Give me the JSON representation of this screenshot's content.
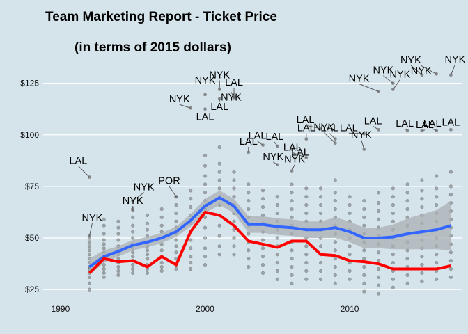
{
  "chart_data": {
    "type": "scatter",
    "title": "Team Marketing Report - Ticket Price",
    "subtitle": "(in terms of 2015 dollars)",
    "xlabel": "",
    "ylabel": "",
    "xlim": [
      1988.8,
      2017.8
    ],
    "ylim": [
      21,
      135
    ],
    "x_ticks": [
      1990,
      2000,
      2010
    ],
    "x_tick_labels": [
      "1990",
      "2000",
      "2010"
    ],
    "y_ticks": [
      25,
      50,
      75,
      100,
      125
    ],
    "y_tick_labels": [
      "$25",
      "$50",
      "$75",
      "$100",
      "$125"
    ],
    "grid": true,
    "legend": "none",
    "colors": {
      "background": "#d5e4eb",
      "grid": "#ffffff",
      "points": "#555555",
      "smooth": "#3366ff",
      "band": "#a9b0b4",
      "median": "#ff0000"
    },
    "points": [
      {
        "x": 1992,
        "y": [
          25,
          28,
          31,
          33,
          35,
          36,
          38,
          40,
          42,
          44,
          46,
          48,
          50
        ]
      },
      {
        "x": 1993,
        "y": [
          31,
          33,
          35,
          37,
          39,
          41,
          43,
          45,
          47,
          49,
          52,
          56,
          59
        ]
      },
      {
        "x": 1994,
        "y": [
          32,
          34,
          36,
          38,
          40,
          42,
          44,
          46,
          49,
          52,
          55,
          58
        ]
      },
      {
        "x": 1995,
        "y": [
          33,
          35,
          37,
          39,
          41,
          43,
          45,
          47,
          50,
          53,
          56,
          60,
          64
        ]
      },
      {
        "x": 1996,
        "y": [
          33,
          35,
          37,
          40,
          42,
          44,
          46,
          48,
          51,
          54,
          57,
          61
        ]
      },
      {
        "x": 1997,
        "y": [
          34,
          36,
          38,
          41,
          44,
          47,
          50,
          53,
          56,
          60,
          64
        ]
      },
      {
        "x": 1998,
        "y": [
          35,
          37,
          40,
          43,
          46,
          49,
          52,
          55,
          58,
          62,
          66,
          70
        ]
      },
      {
        "x": 1999,
        "y": [
          35,
          38,
          41,
          45,
          49,
          53,
          57,
          61,
          65,
          69,
          73
        ]
      },
      {
        "x": 2000,
        "y": [
          37,
          41,
          45,
          50,
          55,
          60,
          64,
          68,
          72,
          76,
          80,
          85,
          90
        ]
      },
      {
        "x": 2001,
        "y": [
          42,
          46,
          51,
          56,
          61,
          66,
          70,
          74,
          78,
          82,
          86,
          94
        ]
      },
      {
        "x": 2002,
        "y": [
          42,
          46,
          50,
          54,
          58,
          62,
          66,
          70,
          74,
          78,
          82
        ]
      },
      {
        "x": 2003,
        "y": [
          36,
          40,
          44,
          48,
          52,
          56,
          60,
          64,
          68,
          72,
          76
        ]
      },
      {
        "x": 2004,
        "y": [
          33,
          37,
          41,
          45,
          49,
          53,
          57,
          61,
          65,
          69,
          73
        ]
      },
      {
        "x": 2005,
        "y": [
          30,
          34,
          38,
          42,
          46,
          50,
          54,
          58,
          62,
          66,
          70
        ]
      },
      {
        "x": 2006,
        "y": [
          28,
          32,
          36,
          40,
          44,
          48,
          52,
          56,
          60,
          64,
          68,
          72,
          76
        ]
      },
      {
        "x": 2007,
        "y": [
          30,
          34,
          38,
          42,
          46,
          50,
          54,
          58,
          62,
          66,
          70,
          74
        ]
      },
      {
        "x": 2008,
        "y": [
          30,
          34,
          38,
          42,
          46,
          50,
          54,
          58,
          62,
          66,
          70,
          74
        ]
      },
      {
        "x": 2009,
        "y": [
          28,
          32,
          36,
          40,
          44,
          48,
          52,
          56,
          60,
          64,
          68,
          72,
          78
        ]
      },
      {
        "x": 2010,
        "y": [
          30,
          34,
          38,
          42,
          46,
          50,
          54,
          58,
          62,
          66,
          70
        ]
      },
      {
        "x": 2011,
        "y": [
          24,
          28,
          32,
          36,
          40,
          44,
          48,
          52,
          56,
          60,
          64,
          68
        ]
      },
      {
        "x": 2012,
        "y": [
          23,
          27,
          31,
          35,
          39,
          43,
          47,
          51,
          55,
          59,
          63,
          67,
          72
        ]
      },
      {
        "x": 2013,
        "y": [
          26,
          30,
          34,
          38,
          42,
          46,
          50,
          54,
          58,
          62,
          66,
          70,
          74
        ]
      },
      {
        "x": 2014,
        "y": [
          28,
          32,
          36,
          40,
          44,
          48,
          52,
          56,
          60,
          64,
          68,
          72,
          76
        ]
      },
      {
        "x": 2015,
        "y": [
          29,
          33,
          37,
          41,
          45,
          49,
          53,
          57,
          61,
          65,
          69,
          73,
          78
        ]
      },
      {
        "x": 2016,
        "y": [
          30,
          34,
          38,
          42,
          46,
          50,
          54,
          58,
          62,
          66,
          70,
          74,
          80
        ]
      },
      {
        "x": 2017,
        "y": [
          31,
          35,
          39,
          43,
          47,
          51,
          55,
          59,
          63,
          67,
          71,
          75,
          82
        ]
      }
    ],
    "labeled_points": [
      {
        "label": "LAL",
        "x": 1992,
        "y": 79.5
      },
      {
        "label": "NYK",
        "x": 1992,
        "y": 51
      },
      {
        "label": "NYK",
        "x": 1995,
        "y": 68
      },
      {
        "label": "NYK",
        "x": 1995,
        "y": 63.5
      },
      {
        "label": "POR",
        "x": 1998,
        "y": 70
      },
      {
        "label": "NYK",
        "x": 2000,
        "y": 119.5
      },
      {
        "label": "NYK",
        "x": 1999,
        "y": 113
      },
      {
        "label": "NYK",
        "x": 2001,
        "y": 122
      },
      {
        "label": "LAL",
        "x": 2000,
        "y": 112.5
      },
      {
        "label": "LAL",
        "x": 2001,
        "y": 117.5
      },
      {
        "label": "NYK",
        "x": 2002,
        "y": 118
      },
      {
        "label": "LAL",
        "x": 2002,
        "y": 118.5
      },
      {
        "label": "LAL",
        "x": 2003,
        "y": 91.5
      },
      {
        "label": "LAL",
        "x": 2004,
        "y": 95
      },
      {
        "label": "LAL",
        "x": 2005,
        "y": 94.5
      },
      {
        "label": "NYK",
        "x": 2005,
        "y": 85.5
      },
      {
        "label": "LAL",
        "x": 2006,
        "y": 93
      },
      {
        "label": "LAL",
        "x": 2007,
        "y": 89
      },
      {
        "label": "NYK",
        "x": 2006,
        "y": 82.5
      },
      {
        "label": "LAL",
        "x": 2007,
        "y": 98
      },
      {
        "label": "LAL",
        "x": 2008,
        "y": 103
      },
      {
        "label": "LAL",
        "x": 2009,
        "y": 98
      },
      {
        "label": "NYK",
        "x": 2009,
        "y": 96
      },
      {
        "label": "LAL",
        "x": 2011,
        "y": 100.5
      },
      {
        "label": "NYK",
        "x": 2011,
        "y": 93
      },
      {
        "label": "LAL",
        "x": 2012,
        "y": 102.5
      },
      {
        "label": "NYK",
        "x": 2012,
        "y": 121
      },
      {
        "label": "NYK",
        "x": 2013,
        "y": 125
      },
      {
        "label": "NYK",
        "x": 2013,
        "y": 122
      },
      {
        "label": "LAL",
        "x": 2014,
        "y": 102
      },
      {
        "label": "LAL",
        "x": 2015,
        "y": 102
      },
      {
        "label": "NYK",
        "x": 2015,
        "y": 129
      },
      {
        "label": "NYK",
        "x": 2016,
        "y": 129.5
      },
      {
        "label": "LAL",
        "x": 2016,
        "y": 102
      },
      {
        "label": "NYK",
        "x": 2017,
        "y": 129
      },
      {
        "label": "LAL",
        "x": 2017,
        "y": 102.5
      }
    ],
    "series": [
      {
        "name": "",
        "type": "smooth",
        "x": [
          1992,
          1993,
          1994,
          1995,
          1996,
          1997,
          1998,
          1999,
          2000,
          2001,
          2002,
          2003,
          2004,
          2005,
          2006,
          2007,
          2008,
          2009,
          2010,
          2011,
          2012,
          2013,
          2014,
          2015,
          2016,
          2017
        ],
        "values": [
          36,
          41,
          43.5,
          46.5,
          48,
          50,
          53,
          58.5,
          65.5,
          69.5,
          65.5,
          56.5,
          56.5,
          55.5,
          55,
          54,
          54,
          55,
          53,
          50,
          50,
          50.5,
          52,
          53,
          54,
          56
        ],
        "lower": [
          32,
          38,
          41,
          44,
          45.5,
          47.5,
          50.5,
          55.5,
          62,
          66,
          62,
          52.5,
          52.5,
          51.5,
          51,
          50,
          50,
          50,
          48,
          45,
          45,
          44.5,
          44.5,
          44.5,
          44.5,
          44
        ],
        "upper": [
          40,
          44,
          46,
          49,
          50.5,
          52.5,
          55.5,
          61.5,
          69,
          73,
          69,
          60.5,
          60.5,
          59.5,
          59,
          58,
          58,
          60,
          58,
          55,
          55,
          56.5,
          59.5,
          61.5,
          63.5,
          68
        ]
      },
      {
        "name": "",
        "type": "line",
        "x": [
          1992,
          1993,
          1994,
          1995,
          1996,
          1997,
          1998,
          1999,
          2000,
          2001,
          2002,
          2003,
          2004,
          2005,
          2006,
          2007,
          2008,
          2009,
          2010,
          2011,
          2012,
          2013,
          2014,
          2015,
          2016,
          2017
        ],
        "values": [
          33,
          40,
          38.5,
          39,
          36,
          41,
          37,
          53,
          62.5,
          61,
          56,
          48.5,
          47,
          45.5,
          48.5,
          48.5,
          42,
          41.5,
          39,
          38.5,
          37.5,
          35,
          35,
          35,
          35,
          36.5
        ]
      }
    ]
  }
}
